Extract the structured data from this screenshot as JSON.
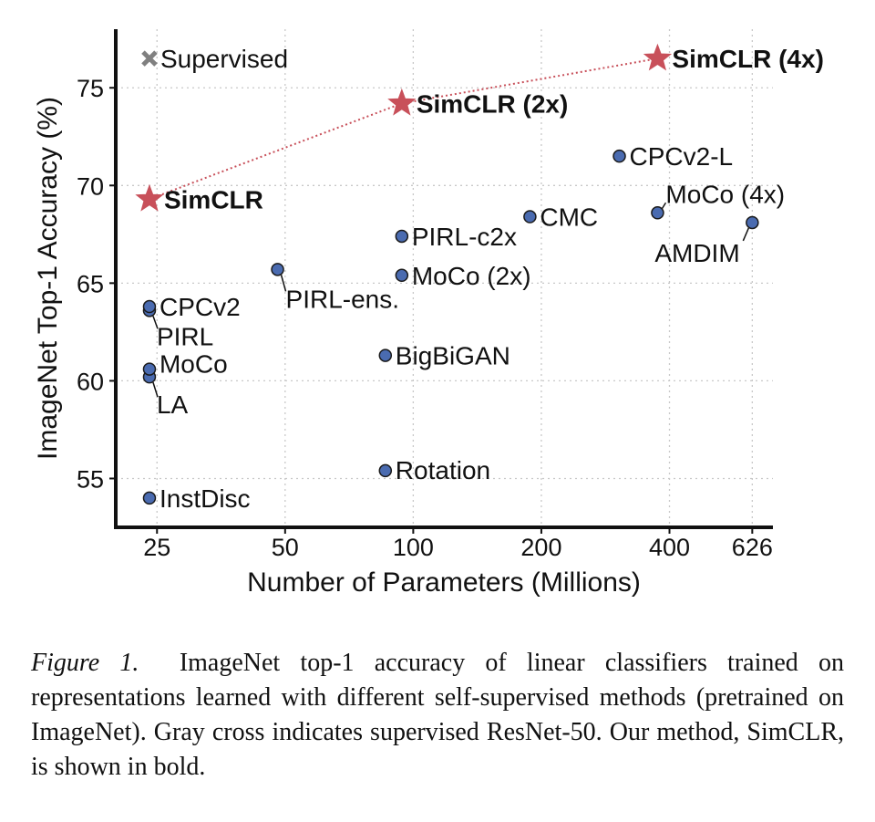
{
  "chart_data": {
    "type": "scatter",
    "title": "",
    "xlabel": "Number of Parameters (Millions)",
    "ylabel": "ImageNet Top-1 Accuracy (%)",
    "xscale": "log",
    "xlim": [
      20,
      700
    ],
    "ylim": [
      52.5,
      78
    ],
    "xticks": [
      25,
      50,
      100,
      200,
      400,
      626
    ],
    "xtick_labels": [
      "25",
      "50",
      "100",
      "200",
      "400",
      "626"
    ],
    "yticks": [
      55,
      60,
      65,
      70,
      75
    ],
    "ytick_labels": [
      "55",
      "60",
      "65",
      "70",
      "75"
    ],
    "grid": true,
    "colors": {
      "baseline": "#4a6bb0",
      "simclr": "#c8505a",
      "supervised": "#808080"
    },
    "series": [
      {
        "name": "",
        "marker": "circle",
        "points": [
          {
            "label": "InstDisc",
            "x": 24,
            "y": 54.0
          },
          {
            "label": "Rotation",
            "x": 86,
            "y": 55.4
          },
          {
            "label": "BigBiGAN",
            "x": 86,
            "y": 61.3
          },
          {
            "label": "LA",
            "x": 24,
            "y": 60.2
          },
          {
            "label": "MoCo",
            "x": 24,
            "y": 60.6
          },
          {
            "label": "PIRL",
            "x": 24,
            "y": 63.6
          },
          {
            "label": "CPCv2",
            "x": 24,
            "y": 63.8
          },
          {
            "label": "PIRL-ens.",
            "x": 48,
            "y": 65.7
          },
          {
            "label": "MoCo (2x)",
            "x": 94,
            "y": 65.4
          },
          {
            "label": "PIRL-c2x",
            "x": 94,
            "y": 67.4
          },
          {
            "label": "CMC",
            "x": 188,
            "y": 68.4
          },
          {
            "label": "AMDIM",
            "x": 626,
            "y": 68.1
          },
          {
            "label": "MoCo (4x)",
            "x": 375,
            "y": 68.6
          },
          {
            "label": "CPCv2-L",
            "x": 305,
            "y": 71.5
          }
        ]
      },
      {
        "name": "",
        "marker": "star",
        "connected": true,
        "points": [
          {
            "label": "SimCLR",
            "x": 24,
            "y": 69.3
          },
          {
            "label": "SimCLR (2x)",
            "x": 94,
            "y": 74.2
          },
          {
            "label": "SimCLR (4x)",
            "x": 375,
            "y": 76.5
          }
        ]
      },
      {
        "name": "Supervised",
        "marker": "x",
        "points": [
          {
            "label": "Supervised",
            "x": 24,
            "y": 76.5
          }
        ]
      }
    ]
  },
  "caption": {
    "figure_label": "Figure 1.",
    "text": "ImageNet top-1 accuracy of linear classifiers trained on representations learned with different self-supervised methods (pretrained on ImageNet). Gray cross indicates supervised ResNet-50. Our method, SimCLR, is shown in bold."
  }
}
